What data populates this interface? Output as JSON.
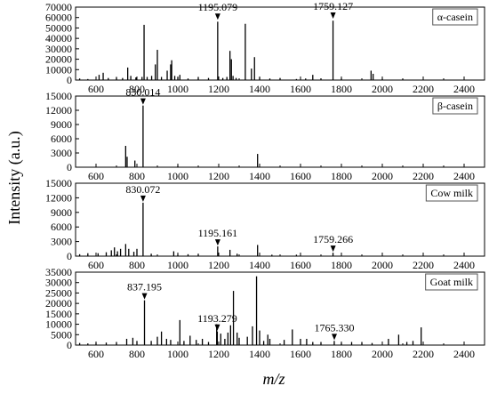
{
  "chart_data": [
    {
      "type": "bar",
      "legend": "α-casein",
      "legend_position": "top-right",
      "xlim": [
        500,
        2500
      ],
      "ylim": [
        0,
        70000
      ],
      "yticks": [
        "0",
        "10000",
        "20000",
        "30000",
        "40000",
        "50000",
        "60000",
        "70000"
      ],
      "xticks": [
        "600",
        "800",
        "1000",
        "1200",
        "1400",
        "1600",
        "1800",
        "2000",
        "2200",
        "2400"
      ],
      "annotations": [
        {
          "x": 1195.079,
          "y": 57000,
          "label": "1195.079"
        },
        {
          "x": 1759.127,
          "y": 58000,
          "label": "1759.127"
        }
      ],
      "peaks": [
        [
          520,
          1500
        ],
        [
          560,
          1000
        ],
        [
          615,
          5000
        ],
        [
          635,
          7000
        ],
        [
          660,
          2000
        ],
        [
          700,
          3000
        ],
        [
          730,
          2000
        ],
        [
          755,
          12000
        ],
        [
          770,
          4000
        ],
        [
          795,
          2500
        ],
        [
          825,
          3000
        ],
        [
          835,
          53000
        ],
        [
          850,
          3000
        ],
        [
          872,
          4000
        ],
        [
          890,
          15000
        ],
        [
          900,
          29000
        ],
        [
          920,
          3000
        ],
        [
          948,
          9000
        ],
        [
          965,
          15000
        ],
        [
          970,
          19000
        ],
        [
          985,
          4000
        ],
        [
          1000,
          2500
        ],
        [
          1010,
          5000
        ],
        [
          1050,
          1500
        ],
        [
          1100,
          3000
        ],
        [
          1150,
          2000
        ],
        [
          1195,
          56000
        ],
        [
          1220,
          2000
        ],
        [
          1240,
          3000
        ],
        [
          1255,
          28000
        ],
        [
          1262,
          20000
        ],
        [
          1270,
          4000
        ],
        [
          1285,
          2000
        ],
        [
          1330,
          54000
        ],
        [
          1360,
          11000
        ],
        [
          1375,
          22000
        ],
        [
          1400,
          2500
        ],
        [
          1450,
          1500
        ],
        [
          1500,
          2000
        ],
        [
          1580,
          1000
        ],
        [
          1625,
          1500
        ],
        [
          1660,
          5000
        ],
        [
          1700,
          1500
        ],
        [
          1759,
          57000
        ],
        [
          1800,
          1500
        ],
        [
          1945,
          9000
        ],
        [
          1955,
          6000
        ],
        [
          2000,
          1200
        ],
        [
          2100,
          800
        ]
      ]
    },
    {
      "type": "bar",
      "legend": "β-casein",
      "legend_position": "top-right",
      "xlim": [
        500,
        2500
      ],
      "ylim": [
        0,
        15000
      ],
      "yticks": [
        "0",
        "3000",
        "6000",
        "9000",
        "12000",
        "15000"
      ],
      "xticks": [
        "600",
        "800",
        "1000",
        "1200",
        "1400",
        "1600",
        "1800",
        "2000",
        "2200",
        "2400"
      ],
      "annotations": [
        {
          "x": 830.014,
          "y": 13000,
          "label": "830.014"
        }
      ],
      "peaks": [
        [
          745,
          4500
        ],
        [
          752,
          2200
        ],
        [
          790,
          1400
        ],
        [
          830,
          13000
        ],
        [
          1000,
          300
        ],
        [
          1390,
          2800
        ]
      ]
    },
    {
      "type": "bar",
      "legend": "Cow milk",
      "legend_position": "top-right",
      "xlim": [
        500,
        2500
      ],
      "ylim": [
        0,
        15000
      ],
      "yticks": [
        "0",
        "3000",
        "6000",
        "9000",
        "12000",
        "15000"
      ],
      "xticks": [
        "600",
        "800",
        "1000",
        "1200",
        "1400",
        "1600",
        "1800",
        "2000",
        "2200",
        "2400"
      ],
      "annotations": [
        {
          "x": 830.072,
          "y": 11000,
          "label": "830.072"
        },
        {
          "x": 1195.161,
          "y": 2000,
          "label": "1195.161"
        },
        {
          "x": 1759.266,
          "y": 700,
          "label": "1759.266"
        }
      ],
      "peaks": [
        [
          520,
          400
        ],
        [
          560,
          600
        ],
        [
          610,
          600
        ],
        [
          650,
          800
        ],
        [
          675,
          1200
        ],
        [
          690,
          1800
        ],
        [
          705,
          1000
        ],
        [
          720,
          1500
        ],
        [
          745,
          2500
        ],
        [
          760,
          1500
        ],
        [
          785,
          900
        ],
        [
          800,
          1500
        ],
        [
          830,
          11000
        ],
        [
          870,
          500
        ],
        [
          980,
          1000
        ],
        [
          1000,
          300
        ],
        [
          1050,
          400
        ],
        [
          1100,
          500
        ],
        [
          1195,
          2000
        ],
        [
          1255,
          1300
        ],
        [
          1290,
          500
        ],
        [
          1390,
          2300
        ],
        [
          1460,
          300
        ],
        [
          1580,
          300
        ],
        [
          1759,
          700
        ]
      ]
    },
    {
      "type": "bar",
      "legend": "Goat milk",
      "legend_position": "top-right",
      "xlim": [
        500,
        2500
      ],
      "ylim": [
        0,
        35000
      ],
      "yticks": [
        "0",
        "5000",
        "10000",
        "15000",
        "20000",
        "25000",
        "30000",
        "35000"
      ],
      "xticks": [
        "600",
        "800",
        "1000",
        "1200",
        "1400",
        "1600",
        "1800",
        "2000",
        "2200",
        "2400"
      ],
      "annotations": [
        {
          "x": 837.195,
          "y": 21500,
          "label": "837.195"
        },
        {
          "x": 1193.279,
          "y": 6500,
          "label": "1193.279"
        },
        {
          "x": 1765.33,
          "y": 2000,
          "label": "1765.330"
        }
      ],
      "peaks": [
        [
          520,
          1000
        ],
        [
          560,
          800
        ],
        [
          600,
          1000
        ],
        [
          650,
          1200
        ],
        [
          700,
          1500
        ],
        [
          750,
          3000
        ],
        [
          780,
          3500
        ],
        [
          800,
          2000
        ],
        [
          837,
          21500
        ],
        [
          870,
          2000
        ],
        [
          900,
          4000
        ],
        [
          920,
          6500
        ],
        [
          945,
          3000
        ],
        [
          965,
          2500
        ],
        [
          1010,
          12000
        ],
        [
          1030,
          2000
        ],
        [
          1060,
          4500
        ],
        [
          1090,
          2500
        ],
        [
          1120,
          3000
        ],
        [
          1150,
          1500
        ],
        [
          1190,
          10000
        ],
        [
          1193,
          6500
        ],
        [
          1210,
          5500
        ],
        [
          1230,
          3000
        ],
        [
          1245,
          6000
        ],
        [
          1258,
          9500
        ],
        [
          1272,
          26000
        ],
        [
          1290,
          6000
        ],
        [
          1300,
          3500
        ],
        [
          1340,
          4000
        ],
        [
          1365,
          9000
        ],
        [
          1385,
          33000
        ],
        [
          1400,
          7000
        ],
        [
          1420,
          2000
        ],
        [
          1440,
          5000
        ],
        [
          1450,
          3000
        ],
        [
          1520,
          2500
        ],
        [
          1560,
          7500
        ],
        [
          1600,
          3000
        ],
        [
          1630,
          3000
        ],
        [
          1660,
          1500
        ],
        [
          1700,
          1500
        ],
        [
          1765,
          2000
        ],
        [
          1800,
          1000
        ],
        [
          1850,
          1500
        ],
        [
          1900,
          1500
        ],
        [
          1950,
          1000
        ],
        [
          2030,
          3000
        ],
        [
          2080,
          5000
        ],
        [
          2120,
          1500
        ],
        [
          2150,
          2000
        ],
        [
          2190,
          8500
        ]
      ]
    }
  ],
  "y_axis_label": "Intensity (a.u.)",
  "x_axis_label": "m/z"
}
